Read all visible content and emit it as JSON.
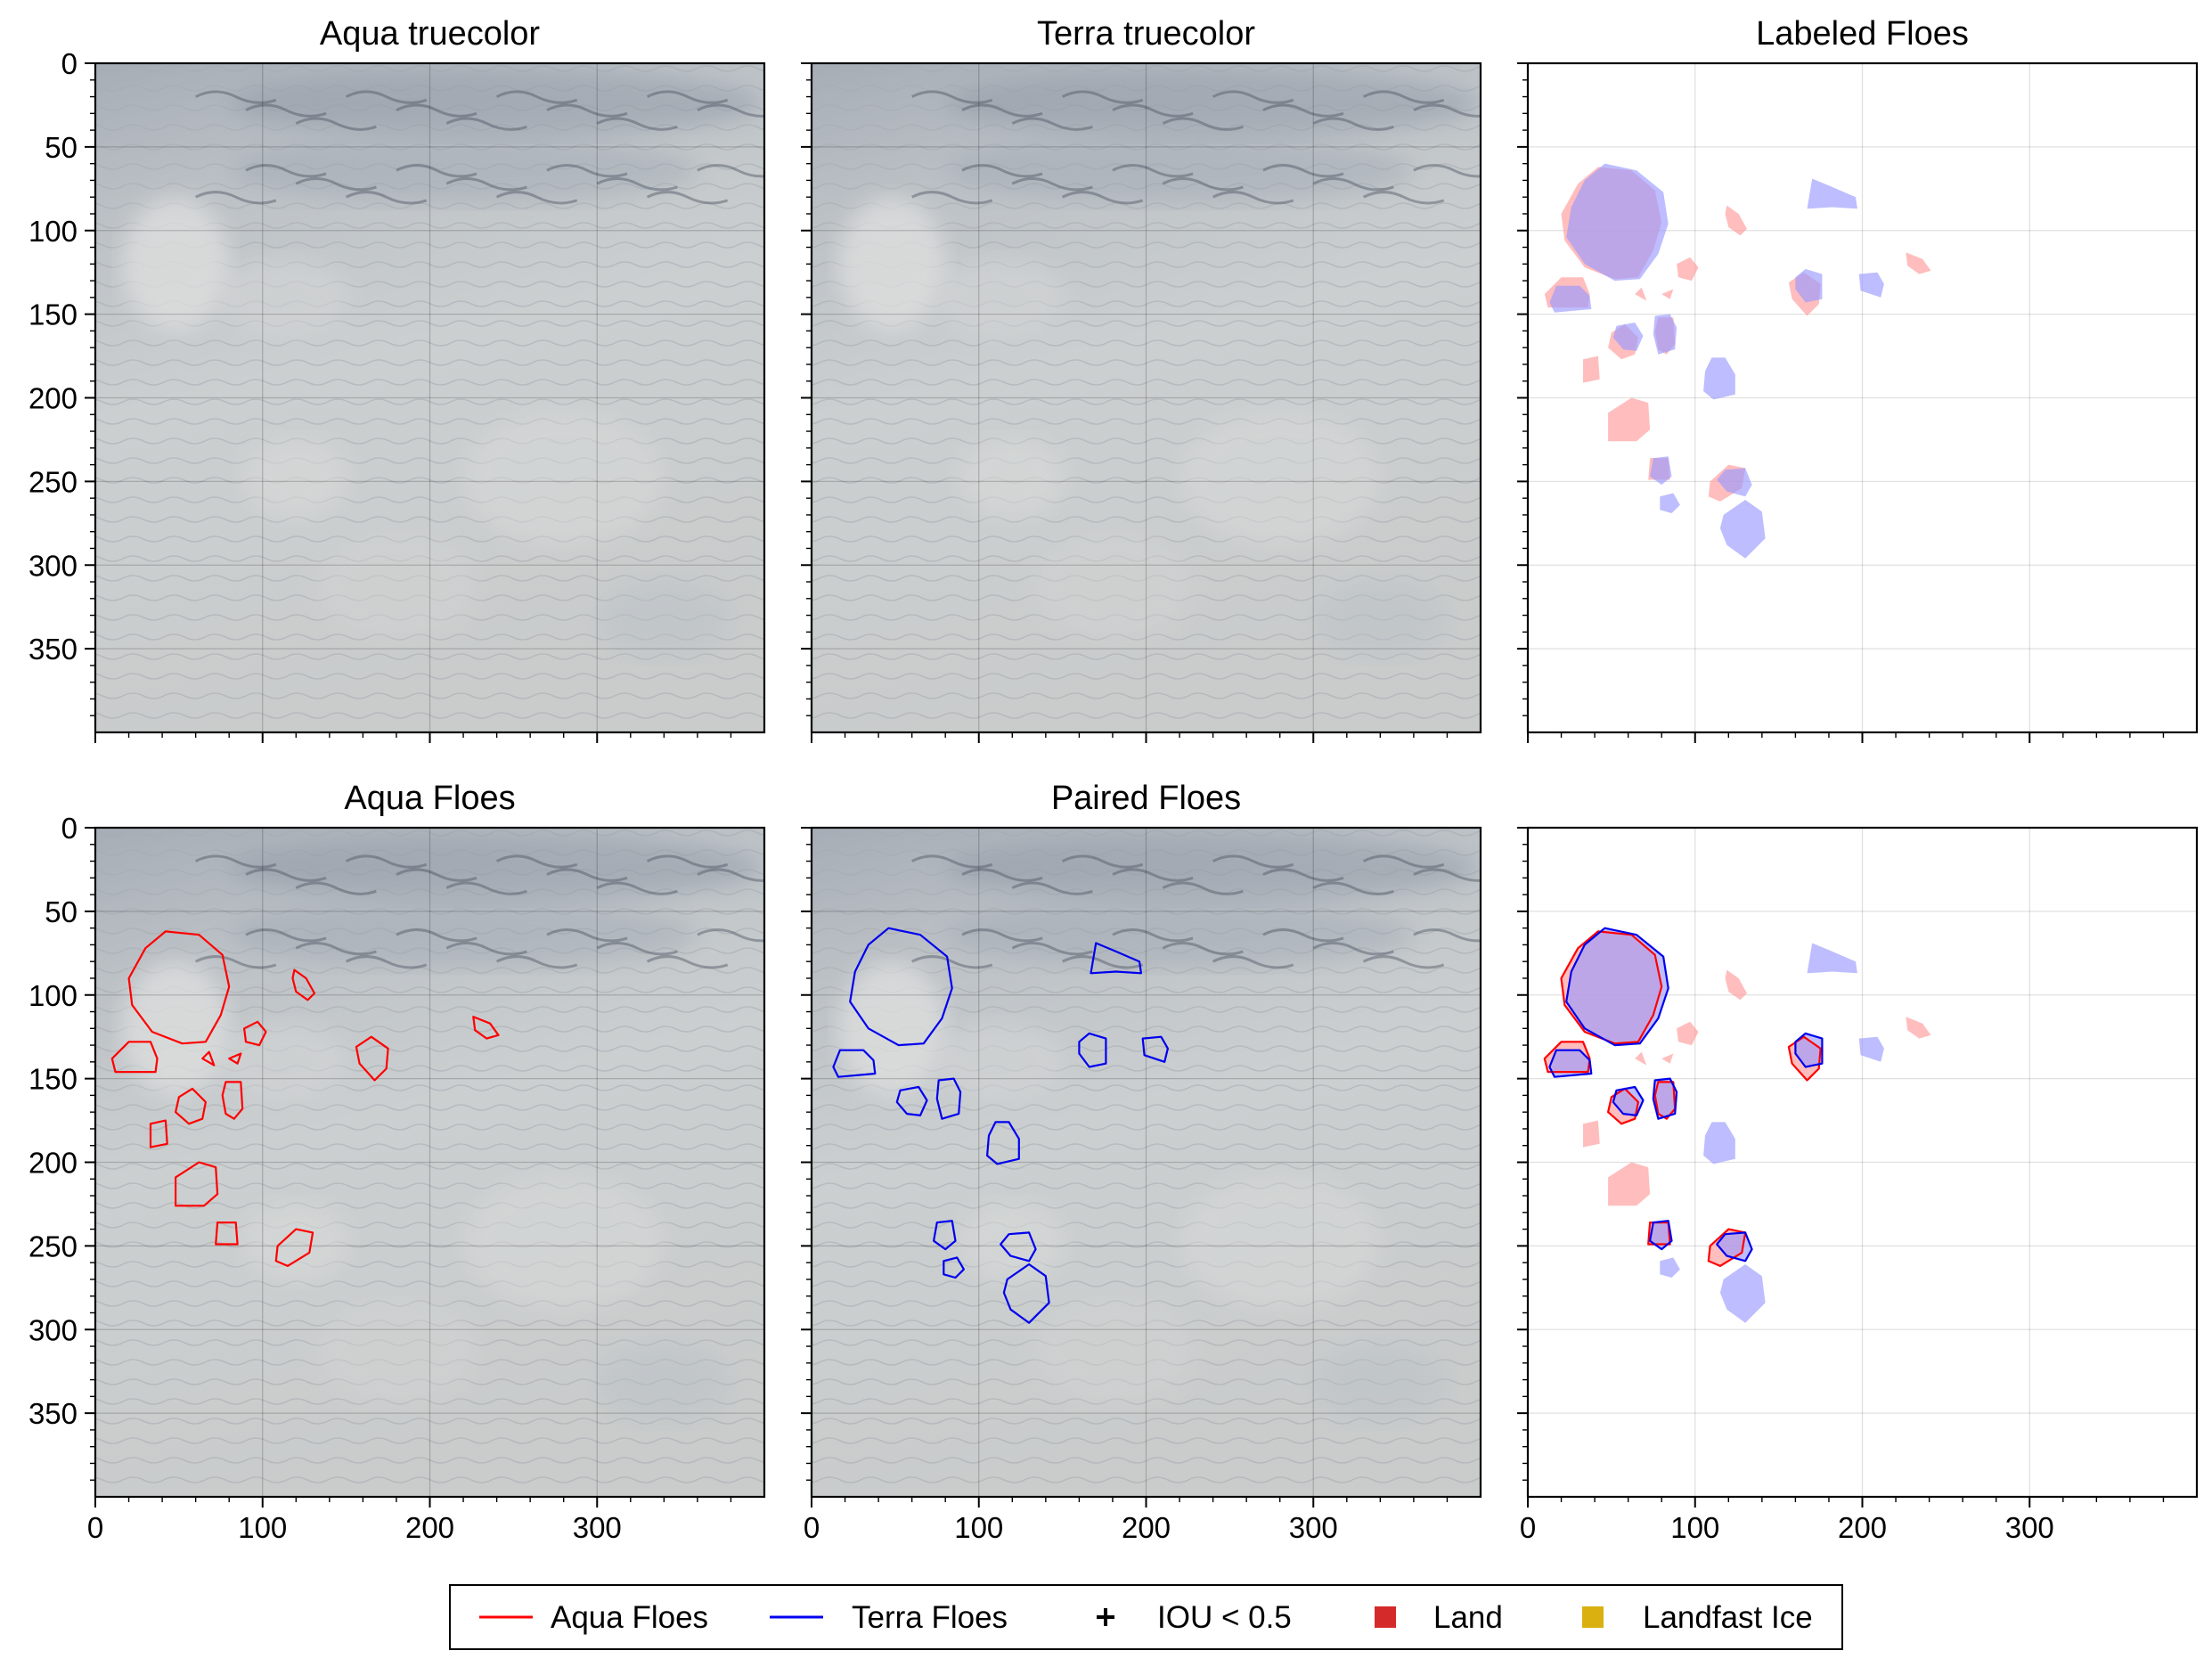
{
  "colors": {
    "aqua": "#ff0000",
    "terra": "#0000ee",
    "aqua_fill": "#ff9a9a",
    "terra_fill": "#9a9aff",
    "land": "#d42a2a",
    "landfast": "#d9b00f",
    "imagery_base": "#c6cacb"
  },
  "legend": {
    "placement": "bottom-center",
    "items": [
      {
        "label": "Aqua Floes",
        "marker": "line",
        "color": "#ff0000"
      },
      {
        "label": "Terra Floes",
        "marker": "line",
        "color": "#0000ee"
      },
      {
        "label": "IOU < 0.5",
        "marker": "plus",
        "color": "#000000"
      },
      {
        "label": "Land",
        "marker": "square",
        "color": "#d42a2a"
      },
      {
        "label": "Landfast Ice",
        "marker": "square",
        "color": "#d9b00f"
      }
    ]
  },
  "chart_data": [
    {
      "type": "image",
      "title": "Aqua truecolor",
      "background": "satellite-truecolor",
      "xlim": [
        0,
        400
      ],
      "ylim": [
        400,
        0
      ],
      "xticks": [
        0,
        100,
        200,
        300
      ],
      "yticks": [
        0,
        50,
        100,
        150,
        200,
        250,
        300,
        350
      ],
      "show_xticklabels": false,
      "show_yticklabels": true,
      "grid": true,
      "layers": []
    },
    {
      "type": "image",
      "title": "Terra truecolor",
      "background": "satellite-truecolor",
      "xlim": [
        0,
        400
      ],
      "ylim": [
        400,
        0
      ],
      "xticks": [
        0,
        100,
        200,
        300
      ],
      "yticks": [
        0,
        50,
        100,
        150,
        200,
        250,
        300,
        350
      ],
      "show_xticklabels": false,
      "show_yticklabels": false,
      "grid": true,
      "layers": []
    },
    {
      "type": "image",
      "title": "Labeled Floes",
      "background": "white",
      "xlim": [
        0,
        400
      ],
      "ylim": [
        400,
        0
      ],
      "xticks": [
        0,
        100,
        200,
        300
      ],
      "yticks": [
        0,
        50,
        100,
        150,
        200,
        250,
        300,
        350
      ],
      "show_xticklabels": false,
      "show_yticklabels": false,
      "grid": true,
      "layers": [
        {
          "set": "aqua_all",
          "style": "fill"
        },
        {
          "set": "terra_all",
          "style": "fill"
        }
      ]
    },
    {
      "type": "image",
      "title": "Aqua Floes",
      "background": "satellite-truecolor",
      "xlim": [
        0,
        400
      ],
      "ylim": [
        400,
        0
      ],
      "xticks": [
        0,
        100,
        200,
        300
      ],
      "yticks": [
        0,
        50,
        100,
        150,
        200,
        250,
        300,
        350
      ],
      "show_xticklabels": true,
      "show_yticklabels": true,
      "grid": true,
      "layers": [
        {
          "set": "aqua_all",
          "style": "outline"
        }
      ]
    },
    {
      "type": "image",
      "title": "Paired Floes",
      "background": "satellite-truecolor",
      "xlim": [
        0,
        400
      ],
      "ylim": [
        400,
        0
      ],
      "xticks": [
        0,
        100,
        200,
        300
      ],
      "yticks": [
        0,
        50,
        100,
        150,
        200,
        250,
        300,
        350
      ],
      "show_xticklabels": true,
      "show_yticklabels": false,
      "grid": true,
      "layers": [
        {
          "set": "terra_all",
          "style": "outline"
        }
      ]
    },
    {
      "type": "image",
      "title": "",
      "background": "white",
      "xlim": [
        0,
        400
      ],
      "ylim": [
        400,
        0
      ],
      "xticks": [
        0,
        100,
        200,
        300
      ],
      "yticks": [
        0,
        50,
        100,
        150,
        200,
        250,
        300,
        350
      ],
      "show_xticklabels": true,
      "show_yticklabels": false,
      "grid": true,
      "layers": [
        {
          "set": "aqua_all",
          "style": "fill"
        },
        {
          "set": "terra_all",
          "style": "fill"
        },
        {
          "set": "aqua_paired",
          "style": "outline"
        },
        {
          "set": "terra_paired",
          "style": "outline"
        }
      ]
    }
  ],
  "floes": {
    "aqua_all": [
      [
        [
          42,
          62
        ],
        [
          62,
          64
        ],
        [
          76,
          76
        ],
        [
          80,
          95
        ],
        [
          75,
          112
        ],
        [
          66,
          128
        ],
        [
          52,
          129
        ],
        [
          34,
          122
        ],
        [
          22,
          106
        ],
        [
          20,
          90
        ],
        [
          30,
          72
        ]
      ],
      [
        [
          20,
          128
        ],
        [
          33,
          128
        ],
        [
          37,
          138
        ],
        [
          36,
          146
        ],
        [
          12,
          146
        ],
        [
          10,
          138
        ]
      ],
      [
        [
          71,
          142
        ],
        [
          68,
          134
        ],
        [
          64,
          138
        ]
      ],
      [
        [
          50,
          161
        ],
        [
          58,
          156
        ],
        [
          66,
          164
        ],
        [
          64,
          174
        ],
        [
          56,
          177
        ],
        [
          48,
          170
        ]
      ],
      [
        [
          78,
          152
        ],
        [
          87,
          152
        ],
        [
          88,
          168
        ],
        [
          83,
          174
        ],
        [
          78,
          171
        ],
        [
          76,
          160
        ]
      ],
      [
        [
          33,
          177
        ],
        [
          42,
          175
        ],
        [
          43,
          189
        ],
        [
          33,
          191
        ]
      ],
      [
        [
          48,
          209
        ],
        [
          62,
          200
        ],
        [
          72,
          203
        ],
        [
          73,
          219
        ],
        [
          65,
          226
        ],
        [
          48,
          226
        ]
      ],
      [
        [
          73,
          236
        ],
        [
          84,
          236
        ],
        [
          85,
          249
        ],
        [
          72,
          249
        ]
      ],
      [
        [
          109,
          250
        ],
        [
          120,
          240
        ],
        [
          130,
          242
        ],
        [
          128,
          254
        ],
        [
          115,
          262
        ],
        [
          108,
          259
        ]
      ],
      [
        [
          119,
          85
        ],
        [
          126,
          90
        ],
        [
          131,
          99
        ],
        [
          127,
          103
        ],
        [
          120,
          98
        ],
        [
          118,
          90
        ]
      ],
      [
        [
          89,
          120
        ],
        [
          97,
          116
        ],
        [
          102,
          122
        ],
        [
          98,
          130
        ],
        [
          90,
          128
        ]
      ],
      [
        [
          80,
          138
        ],
        [
          87,
          135
        ],
        [
          85,
          141
        ]
      ],
      [
        [
          156,
          131
        ],
        [
          165,
          125
        ],
        [
          175,
          132
        ],
        [
          174,
          144
        ],
        [
          167,
          151
        ],
        [
          158,
          141
        ]
      ],
      [
        [
          226,
          113
        ],
        [
          236,
          117
        ],
        [
          241,
          124
        ],
        [
          234,
          126
        ],
        [
          227,
          121
        ]
      ]
    ],
    "terra_all": [
      [
        [
          46,
          60
        ],
        [
          65,
          64
        ],
        [
          81,
          77
        ],
        [
          84,
          96
        ],
        [
          78,
          114
        ],
        [
          67,
          129
        ],
        [
          52,
          130
        ],
        [
          34,
          120
        ],
        [
          23,
          104
        ],
        [
          26,
          86
        ],
        [
          34,
          70
        ]
      ],
      [
        [
          17,
          133
        ],
        [
          31,
          133
        ],
        [
          37,
          139
        ],
        [
          38,
          147
        ],
        [
          16,
          149
        ],
        [
          13,
          143
        ]
      ],
      [
        [
          53,
          157
        ],
        [
          64,
          155
        ],
        [
          69,
          163
        ],
        [
          65,
          172
        ],
        [
          57,
          171
        ],
        [
          51,
          164
        ]
      ],
      [
        [
          76,
          151
        ],
        [
          85,
          150
        ],
        [
          89,
          158
        ],
        [
          88,
          171
        ],
        [
          78,
          174
        ],
        [
          75,
          162
        ]
      ],
      [
        [
          110,
          176
        ],
        [
          118,
          176
        ],
        [
          124,
          186
        ],
        [
          124,
          198
        ],
        [
          111,
          201
        ],
        [
          105,
          196
        ],
        [
          106,
          184
        ]
      ],
      [
        [
          75,
          236
        ],
        [
          84,
          235
        ],
        [
          86,
          247
        ],
        [
          80,
          252
        ],
        [
          73,
          247
        ]
      ],
      [
        [
          118,
          243
        ],
        [
          130,
          242
        ],
        [
          134,
          252
        ],
        [
          130,
          259
        ],
        [
          119,
          256
        ],
        [
          113,
          249
        ]
      ],
      [
        [
          79,
          259
        ],
        [
          87,
          257
        ],
        [
          91,
          264
        ],
        [
          86,
          269
        ],
        [
          79,
          267
        ]
      ],
      [
        [
          117,
          270
        ],
        [
          130,
          261
        ],
        [
          140,
          268
        ],
        [
          142,
          284
        ],
        [
          130,
          296
        ],
        [
          119,
          288
        ],
        [
          115,
          278
        ]
      ],
      [
        [
          170,
          69
        ],
        [
          182,
          74
        ],
        [
          196,
          80
        ],
        [
          197,
          87
        ],
        [
          182,
          86
        ],
        [
          167,
          87
        ]
      ],
      [
        [
          160,
          128
        ],
        [
          166,
          123
        ],
        [
          176,
          126
        ],
        [
          176,
          141
        ],
        [
          166,
          143
        ],
        [
          160,
          135
        ]
      ],
      [
        [
          198,
          126
        ],
        [
          209,
          125
        ],
        [
          213,
          132
        ],
        [
          211,
          140
        ],
        [
          199,
          136
        ]
      ]
    ],
    "aqua_paired": [
      [
        [
          42,
          62
        ],
        [
          62,
          64
        ],
        [
          76,
          76
        ],
        [
          80,
          95
        ],
        [
          75,
          112
        ],
        [
          66,
          128
        ],
        [
          52,
          129
        ],
        [
          34,
          122
        ],
        [
          22,
          106
        ],
        [
          20,
          90
        ],
        [
          30,
          72
        ]
      ],
      [
        [
          20,
          128
        ],
        [
          33,
          128
        ],
        [
          37,
          138
        ],
        [
          36,
          146
        ],
        [
          12,
          146
        ],
        [
          10,
          138
        ]
      ],
      [
        [
          50,
          161
        ],
        [
          58,
          156
        ],
        [
          66,
          164
        ],
        [
          64,
          174
        ],
        [
          56,
          177
        ],
        [
          48,
          170
        ]
      ],
      [
        [
          78,
          152
        ],
        [
          87,
          152
        ],
        [
          88,
          168
        ],
        [
          83,
          174
        ],
        [
          78,
          171
        ],
        [
          76,
          160
        ]
      ],
      [
        [
          73,
          236
        ],
        [
          84,
          236
        ],
        [
          85,
          249
        ],
        [
          72,
          249
        ]
      ],
      [
        [
          109,
          250
        ],
        [
          120,
          240
        ],
        [
          130,
          242
        ],
        [
          128,
          254
        ],
        [
          115,
          262
        ],
        [
          108,
          259
        ]
      ],
      [
        [
          156,
          131
        ],
        [
          165,
          125
        ],
        [
          175,
          132
        ],
        [
          174,
          144
        ],
        [
          167,
          151
        ],
        [
          158,
          141
        ]
      ]
    ],
    "terra_paired": [
      [
        [
          46,
          60
        ],
        [
          65,
          64
        ],
        [
          81,
          77
        ],
        [
          84,
          96
        ],
        [
          78,
          114
        ],
        [
          67,
          129
        ],
        [
          52,
          130
        ],
        [
          34,
          120
        ],
        [
          23,
          104
        ],
        [
          26,
          86
        ],
        [
          34,
          70
        ]
      ],
      [
        [
          17,
          133
        ],
        [
          31,
          133
        ],
        [
          37,
          139
        ],
        [
          38,
          147
        ],
        [
          16,
          149
        ],
        [
          13,
          143
        ]
      ],
      [
        [
          53,
          157
        ],
        [
          64,
          155
        ],
        [
          69,
          163
        ],
        [
          65,
          172
        ],
        [
          57,
          171
        ],
        [
          51,
          164
        ]
      ],
      [
        [
          76,
          151
        ],
        [
          85,
          150
        ],
        [
          89,
          158
        ],
        [
          88,
          171
        ],
        [
          78,
          174
        ],
        [
          75,
          162
        ]
      ],
      [
        [
          75,
          236
        ],
        [
          84,
          235
        ],
        [
          86,
          247
        ],
        [
          80,
          252
        ],
        [
          73,
          247
        ]
      ],
      [
        [
          118,
          243
        ],
        [
          130,
          242
        ],
        [
          134,
          252
        ],
        [
          130,
          259
        ],
        [
          119,
          256
        ],
        [
          113,
          249
        ]
      ],
      [
        [
          160,
          128
        ],
        [
          166,
          123
        ],
        [
          176,
          126
        ],
        [
          176,
          141
        ],
        [
          166,
          143
        ],
        [
          160,
          135
        ]
      ]
    ]
  }
}
